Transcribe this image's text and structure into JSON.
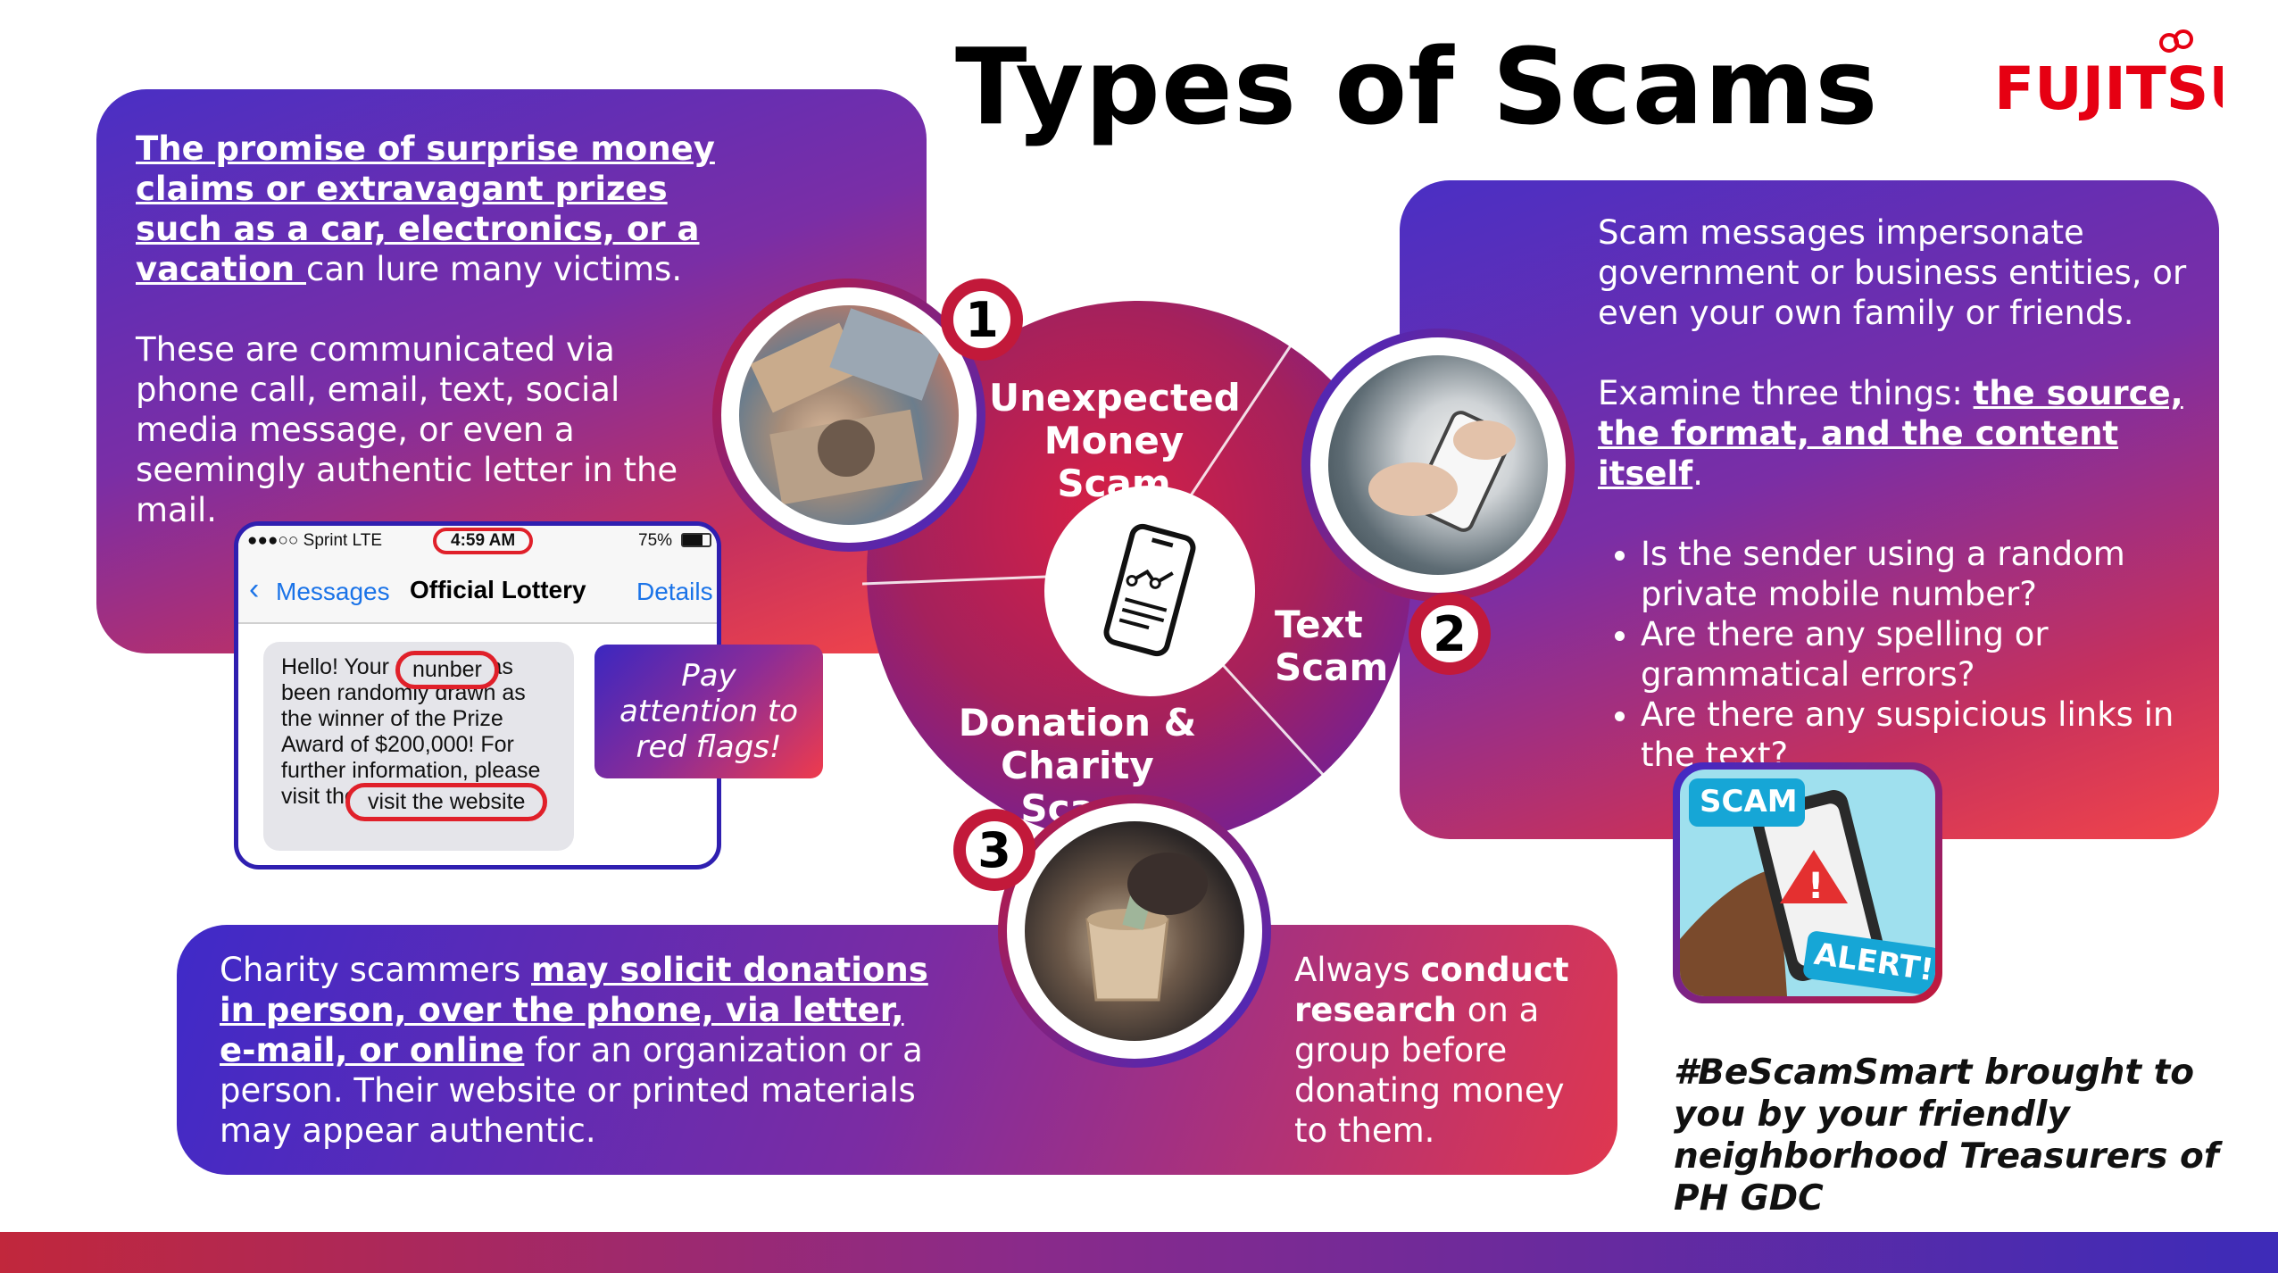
{
  "title": "Types of Scams",
  "brand": "FUJITSU",
  "colors": {
    "accent_red": "#e5203c",
    "accent_purple": "#3f2ac8",
    "brand": "#e60012"
  },
  "card_unexpected": {
    "p1_link": "The promise of surprise money claims or extravagant prizes such as a car, electronics, or a vacation ",
    "p1_rest": "can lure many victims.",
    "p2": "These are communicated via phone call, email, text, social media message, or even a seemingly authentic letter in the mail."
  },
  "phone": {
    "carrier": "●●●○○ Sprint  LTE",
    "time": "4:59 AM",
    "battery": "75%",
    "back_label": "Messages",
    "contact": "Official Lottery",
    "details": "Details",
    "message": "Hello! Your number has been randomly drawn as the winner of the Prize Award of $200,000! For further information, please visit the website http://...",
    "highlight1": "nunber",
    "highlight2": "visit the website"
  },
  "red_flags": "Pay attention to red flags!",
  "card_text": {
    "p1": "Scam messages impersonate government or business entities, or even your own family or friends.",
    "p2_prefix": "Examine three things: ",
    "p2_link": "the source, the format, and the content itself",
    "p2_suffix": ".",
    "bullets": [
      "Is the sender using a random private mobile number?",
      "Are there any spelling or grammatical errors?",
      "Are there any suspicious links in the text?"
    ]
  },
  "card_charity": {
    "prefix": "Charity scammers ",
    "link": "may solicit donations in person, over the phone, via letter, e-mail, or online",
    "suffix": " for an organization or a person. Their website or printed materials may appear authentic."
  },
  "card_research": {
    "prefix": "Always ",
    "bold": "conduct research",
    "suffix": " on a group before donating money to them."
  },
  "wheel": {
    "label1": "Unexpected Money Scam",
    "label2": "Text Scam",
    "label3": "Donation & Charity Scam",
    "n1": "1",
    "n2": "2",
    "n3": "3"
  },
  "scam_alert": {
    "top": "SCAM",
    "bottom": "ALERT!"
  },
  "footer_note": "#BeScamSmart brought to you by your friendly neighborhood Treasurers of PH GDC"
}
